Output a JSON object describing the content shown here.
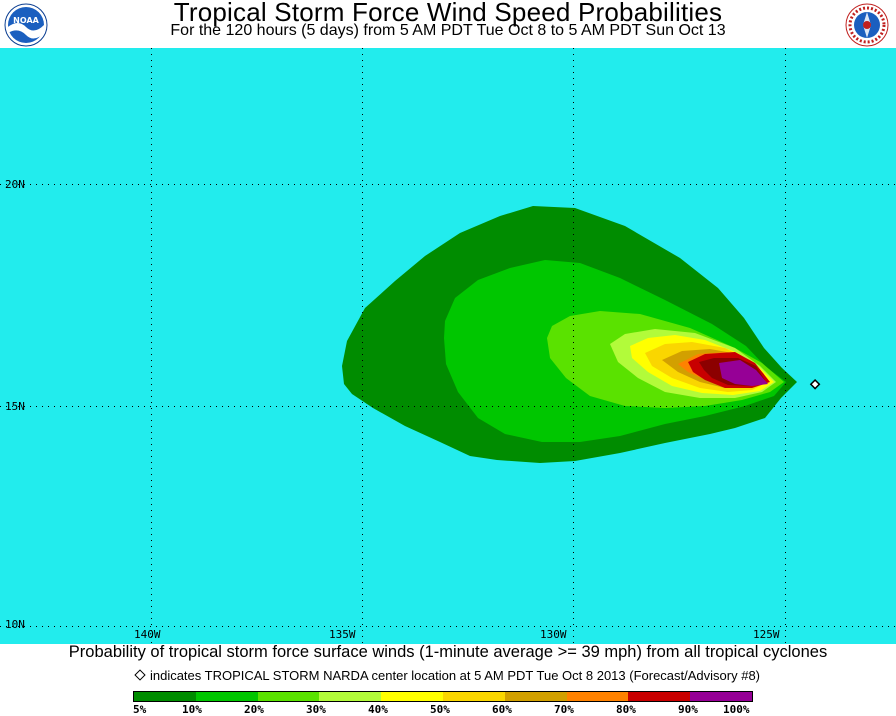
{
  "header": {
    "title": "Tropical Storm Force Wind Speed Probabilities",
    "subtitle": "For the 120 hours (5 days) from 5 AM PDT Tue Oct 8 to 5 AM PDT Sun Oct 13",
    "left_logo": {
      "icon": "noaa-logo",
      "text": "NOAA"
    },
    "right_logo": {
      "icon": "nws-logo",
      "text": "NATIONAL WEATHER SERVICE"
    }
  },
  "map": {
    "background_color": "#22eced",
    "lat_labels": [
      "20N",
      "15N",
      "10N"
    ],
    "lon_labels": [
      "140W",
      "135W",
      "130W",
      "125W"
    ],
    "storm_center": {
      "lat": 15.5,
      "lon": -124.3
    }
  },
  "footer": {
    "caption": "Probability of tropical storm force surface winds (1-minute average >= 39 mph) from all tropical cyclones",
    "marker_note": "indicates TROPICAL STORM NARDA center location at 5 AM PDT Tue Oct 8 2013 (Forecast/Advisory #8)"
  },
  "legend": {
    "labels": [
      "5%",
      "10%",
      "20%",
      "30%",
      "40%",
      "50%",
      "60%",
      "70%",
      "80%",
      "90%",
      "100%"
    ],
    "colors": [
      "#008c00",
      "#00c600",
      "#5ae200",
      "#b2fb3a",
      "#ffff00",
      "#fad600",
      "#d2a000",
      "#ff8200",
      "#c80000",
      "#8c0000",
      "#960096"
    ]
  }
}
